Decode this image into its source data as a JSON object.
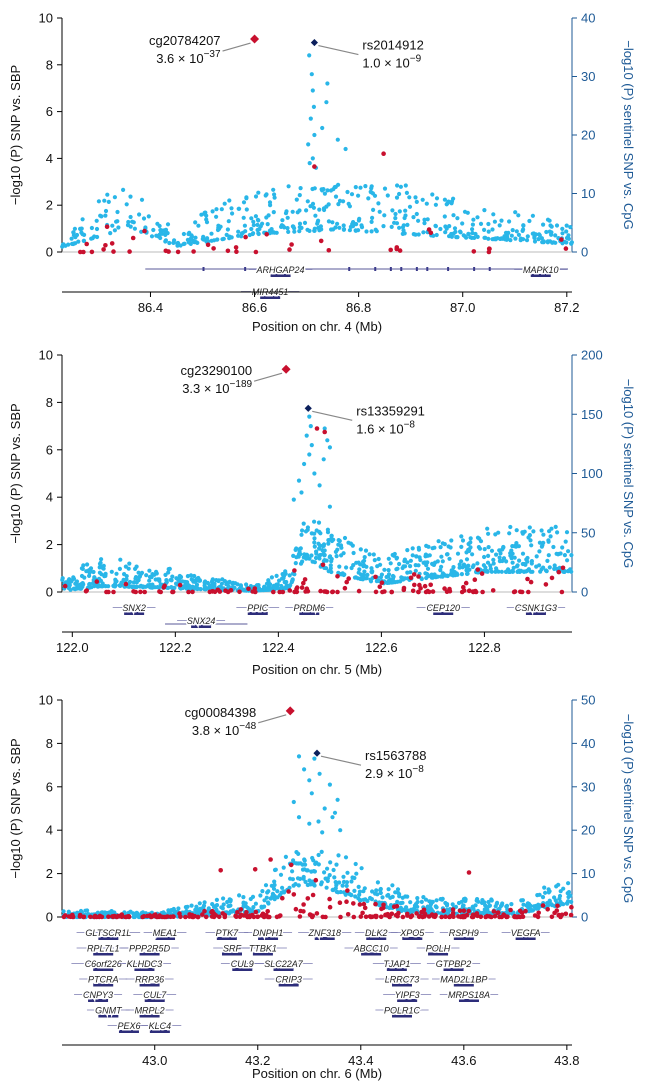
{
  "chart_data": [
    {
      "type": "scatter",
      "xlabel": "Position on chr. 4 (Mb)",
      "ylabel": "−log10 (P) SNP vs. SBP",
      "y2label": "−log10 (P) sentinel SNP vs. CpG",
      "xlim": [
        86.23,
        87.21
      ],
      "ylim": [
        0,
        10
      ],
      "y2lim": [
        0,
        40
      ],
      "xticks": [
        "86.4",
        "86.6",
        "86.8",
        "87.0",
        "87.2"
      ],
      "yticks": [
        "0",
        "2",
        "4",
        "6",
        "8",
        "10"
      ],
      "y2ticks": [
        "0",
        "10",
        "20",
        "30",
        "40"
      ],
      "cpg": {
        "label": "cg20784207",
        "pvalue": "3.6 × 10⁻³⁷",
        "x": 86.6,
        "y": 9.1
      },
      "sentinel": {
        "label": "rs2014912",
        "pvalue": "1.0 × 10⁻⁹",
        "x": 86.715,
        "y": 8.95
      },
      "peak_snps": [
        [
          86.705,
          8.4
        ],
        [
          86.71,
          7.6
        ],
        [
          86.712,
          6.9
        ],
        [
          86.714,
          6.2
        ],
        [
          86.708,
          5.7
        ],
        [
          86.715,
          5.0
        ],
        [
          86.703,
          4.6
        ],
        [
          86.712,
          4.0
        ],
        [
          86.718,
          3.6
        ],
        [
          86.74,
          7.2
        ],
        [
          86.738,
          6.4
        ],
        [
          86.73,
          5.3
        ],
        [
          86.76,
          4.8
        ],
        [
          86.775,
          4.4
        ],
        [
          86.706,
          3.8
        ]
      ],
      "red_snps": [
        [
          86.715,
          3.65
        ],
        [
          86.848,
          4.2
        ]
      ],
      "genes": [
        {
          "name": "ARHGAP24",
          "x": 86.65,
          "row": 0
        },
        {
          "name": "MIR4451",
          "x": 86.63,
          "row": 1
        },
        {
          "name": "MAPK10",
          "x": 87.15,
          "row": 0
        }
      ]
    },
    {
      "type": "scatter",
      "xlabel": "Position on chr. 5 (Mb)",
      "ylabel": "−log10 (P) SNP vs. SBP",
      "y2label": "−log10 (P) sentinel SNP vs. CpG",
      "xlim": [
        121.98,
        122.97
      ],
      "ylim": [
        0,
        10
      ],
      "y2lim": [
        0,
        200
      ],
      "xticks": [
        "122.0",
        "122.2",
        "122.4",
        "122.6",
        "122.8"
      ],
      "yticks": [
        "0",
        "2",
        "4",
        "6",
        "8",
        "10"
      ],
      "y2ticks": [
        "0",
        "50",
        "100",
        "150",
        "200"
      ],
      "cpg": {
        "label": "cg23290100",
        "pvalue": "3.3 × 10⁻¹⁸⁹",
        "x": 122.415,
        "y": 9.4
      },
      "sentinel": {
        "label": "rs13359291",
        "pvalue": "1.6 × 10⁻⁸",
        "x": 122.458,
        "y": 7.75
      },
      "peak_snps": [
        [
          122.46,
          7.4
        ],
        [
          122.463,
          7.0
        ],
        [
          122.455,
          6.6
        ],
        [
          122.465,
          6.2
        ],
        [
          122.46,
          5.8
        ],
        [
          122.45,
          5.4
        ],
        [
          122.47,
          5.0
        ],
        [
          122.49,
          6.9
        ],
        [
          122.495,
          6.4
        ],
        [
          122.5,
          6.1
        ],
        [
          122.488,
          5.6
        ],
        [
          122.44,
          4.7
        ],
        [
          122.445,
          4.2
        ],
        [
          122.48,
          4.5
        ],
        [
          122.5,
          3.6
        ],
        [
          122.43,
          3.9
        ]
      ],
      "red_snps": [
        [
          122.475,
          6.9
        ],
        [
          122.49,
          6.75
        ]
      ],
      "genes": [
        {
          "name": "SNX2",
          "x": 122.12,
          "row": 0
        },
        {
          "name": "PPIC",
          "x": 122.36,
          "row": 0
        },
        {
          "name": "PRDM6",
          "x": 122.46,
          "row": 0
        },
        {
          "name": "CEP120",
          "x": 122.72,
          "row": 0
        },
        {
          "name": "CSNK1G3",
          "x": 122.9,
          "row": 0
        },
        {
          "name": "SNX24",
          "x": 122.25,
          "row": 1
        }
      ]
    },
    {
      "type": "scatter",
      "xlabel": "Position on chr. 6 (Mb)",
      "ylabel": "−log10 (P) SNP vs. SBP",
      "y2label": "−log10 (P) sentinel SNP vs. CpG",
      "xlim": [
        42.82,
        43.81
      ],
      "ylim": [
        0,
        10
      ],
      "y2lim": [
        0,
        50
      ],
      "xticks": [
        "43.0",
        "43.2",
        "43.4",
        "43.6",
        "43.8"
      ],
      "yticks": [
        "0",
        "2",
        "4",
        "6",
        "8",
        "10"
      ],
      "y2ticks": [
        "0",
        "10",
        "20",
        "30",
        "40",
        "50"
      ],
      "cpg": {
        "label": "cg00084398",
        "pvalue": "3.8 × 10⁻⁴⁸",
        "x": 43.263,
        "y": 9.5
      },
      "sentinel": {
        "label": "rs1563788",
        "pvalue": "2.9 × 10⁻⁸",
        "x": 43.315,
        "y": 7.55
      },
      "peak_snps": [
        [
          43.28,
          7.4
        ],
        [
          43.29,
          6.8
        ],
        [
          43.3,
          6.3
        ],
        [
          43.31,
          7.3
        ],
        [
          43.32,
          6.6
        ],
        [
          43.34,
          6.1
        ],
        [
          43.355,
          5.4
        ],
        [
          43.33,
          5.0
        ],
        [
          43.345,
          4.6
        ],
        [
          43.3,
          4.3
        ],
        [
          43.325,
          3.9
        ],
        [
          43.36,
          4.0
        ],
        [
          43.27,
          5.3
        ],
        [
          43.28,
          4.6
        ],
        [
          43.305,
          5.7
        ],
        [
          43.35,
          4.8
        ],
        [
          43.318,
          4.4
        ]
      ],
      "red_snps": [
        [
          43.128,
          2.15
        ],
        [
          43.225,
          2.65
        ],
        [
          43.265,
          2.4
        ],
        [
          43.61,
          2.05
        ],
        [
          43.195,
          2.2
        ]
      ],
      "genes": [
        {
          "name": "GLTSCR1L",
          "x": 42.91,
          "row": 0
        },
        {
          "name": "MEA1",
          "x": 43.02,
          "row": 0
        },
        {
          "name": "PTK7",
          "x": 43.14,
          "row": 0
        },
        {
          "name": "DNPH1",
          "x": 43.22,
          "row": 0
        },
        {
          "name": "ZNF318",
          "x": 43.33,
          "row": 0
        },
        {
          "name": "DLK2",
          "x": 43.43,
          "row": 0
        },
        {
          "name": "XPO5",
          "x": 43.5,
          "row": 0
        },
        {
          "name": "RSPH9",
          "x": 43.6,
          "row": 0
        },
        {
          "name": "VEGFA",
          "x": 43.72,
          "row": 0
        },
        {
          "name": "RPL7L1",
          "x": 42.9,
          "row": 1
        },
        {
          "name": "PPP2R5D",
          "x": 42.99,
          "row": 1
        },
        {
          "name": "SRF",
          "x": 43.15,
          "row": 1
        },
        {
          "name": "TTBK1",
          "x": 43.21,
          "row": 1
        },
        {
          "name": "ABCC10",
          "x": 43.42,
          "row": 1
        },
        {
          "name": "POLH",
          "x": 43.55,
          "row": 1
        },
        {
          "name": "C6orf226",
          "x": 42.9,
          "row": 2
        },
        {
          "name": "KLHDC3",
          "x": 42.98,
          "row": 2
        },
        {
          "name": "CUL9",
          "x": 43.17,
          "row": 2
        },
        {
          "name": "SLC22A7",
          "x": 43.25,
          "row": 2
        },
        {
          "name": "TJAP1",
          "x": 43.47,
          "row": 2
        },
        {
          "name": "GTPBP2",
          "x": 43.58,
          "row": 2
        },
        {
          "name": "PTCRA",
          "x": 42.9,
          "row": 3
        },
        {
          "name": "RRP36",
          "x": 42.99,
          "row": 3
        },
        {
          "name": "CRIP3",
          "x": 43.26,
          "row": 3
        },
        {
          "name": "LRRC73",
          "x": 43.48,
          "row": 3
        },
        {
          "name": "MAD2L1BP",
          "x": 43.6,
          "row": 3
        },
        {
          "name": "CNPY3",
          "x": 42.89,
          "row": 4
        },
        {
          "name": "CUL7",
          "x": 43.0,
          "row": 4
        },
        {
          "name": "YIPF3",
          "x": 43.49,
          "row": 4
        },
        {
          "name": "MRPS18A",
          "x": 43.61,
          "row": 4
        },
        {
          "name": "GNMT",
          "x": 42.91,
          "row": 5
        },
        {
          "name": "MRPL2",
          "x": 42.99,
          "row": 5
        },
        {
          "name": "POLR1C",
          "x": 43.48,
          "row": 5
        },
        {
          "name": "PEX6",
          "x": 42.95,
          "row": 6
        },
        {
          "name": "KLC4",
          "x": 43.01,
          "row": 6
        }
      ]
    }
  ]
}
